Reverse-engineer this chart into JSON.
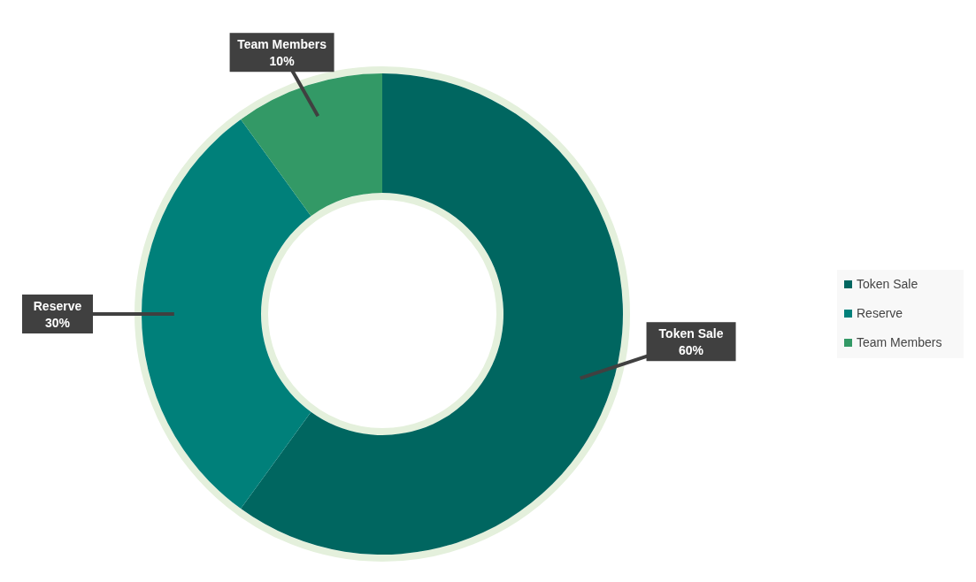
{
  "chart_data": {
    "type": "donut",
    "categories": [
      "Token Sale",
      "Reserve",
      "Team Members"
    ],
    "values": [
      60,
      30,
      10
    ],
    "value_labels": [
      "60%",
      "30%",
      "10%"
    ],
    "colors": [
      "#006660",
      "#00807a",
      "#339966"
    ],
    "data_labels": true,
    "legend": "right"
  }
}
